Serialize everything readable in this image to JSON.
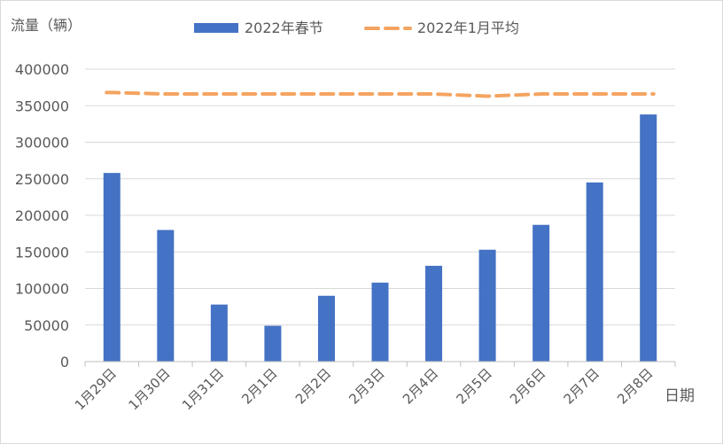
{
  "chart_data": {
    "type": "bar",
    "ylabel": "流量（辆）",
    "xlabel": "日期",
    "categories": [
      "1月29日",
      "1月30日",
      "1月31日",
      "2月1日",
      "2月2日",
      "2月3日",
      "2月4日",
      "2月5日",
      "2月6日",
      "2月7日",
      "2月8日"
    ],
    "series": [
      {
        "name": "2022年春节",
        "type": "bar",
        "color": "#4472C4",
        "values": [
          258000,
          180000,
          78000,
          49000,
          90000,
          108000,
          131000,
          153000,
          187000,
          245000,
          338000
        ]
      },
      {
        "name": "2022年1月平均",
        "type": "line",
        "style": "dashed",
        "color": "#F4A460",
        "values": [
          368000,
          366000,
          366000,
          366000,
          366000,
          366000,
          366000,
          363000,
          366000,
          366000,
          366000
        ]
      }
    ],
    "ylim": [
      0,
      400000
    ],
    "yticks": [
      "0",
      "50000",
      "100000",
      "150000",
      "200000",
      "250000",
      "300000",
      "350000",
      "400000"
    ],
    "grid": true,
    "legend_position": "top"
  }
}
